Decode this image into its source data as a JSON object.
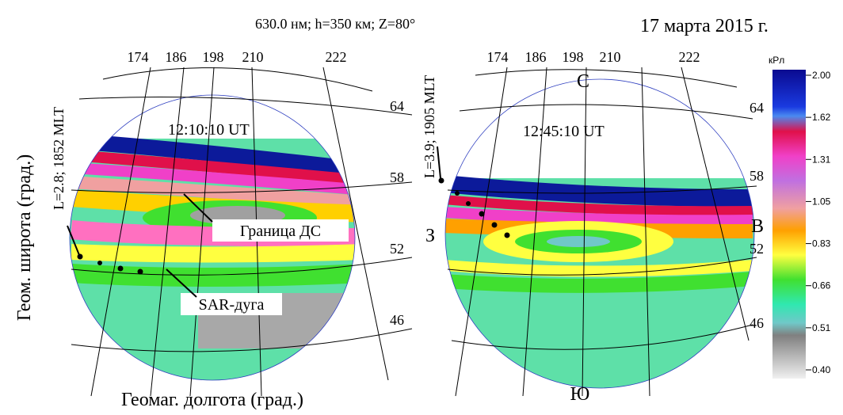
{
  "header": {
    "params": "630.0 нм; h=350 км; Z=80°",
    "date": "17 марта 2015 г."
  },
  "axes": {
    "y_label": "Геом. широта (град.)",
    "x_label": "Геомаг. долгота (град.)"
  },
  "left_panel": {
    "time": "12:10:10 UT",
    "point_label": "L=2.8; 1852 MLT",
    "longitudes": [
      "174",
      "186",
      "198",
      "210",
      "222"
    ],
    "latitudes": [
      "64",
      "58",
      "52",
      "46"
    ],
    "annotations": [
      "Граница ДС",
      "SAR-дуга"
    ]
  },
  "right_panel": {
    "time": "12:45:10 UT",
    "point_label": "L=3.9; 1905 MLT",
    "longitudes": [
      "174",
      "186",
      "198",
      "210",
      "222"
    ],
    "latitudes": [
      "64",
      "58",
      "52",
      "46"
    ],
    "directions": {
      "north": "С",
      "south": "Ю",
      "west": "З",
      "east": "В"
    }
  },
  "colorbar": {
    "unit": "кРл",
    "ticks": [
      "2.00",
      "1.62",
      "1.31",
      "1.05",
      "0.83",
      "0.66",
      "0.51",
      "0.40"
    ]
  }
}
